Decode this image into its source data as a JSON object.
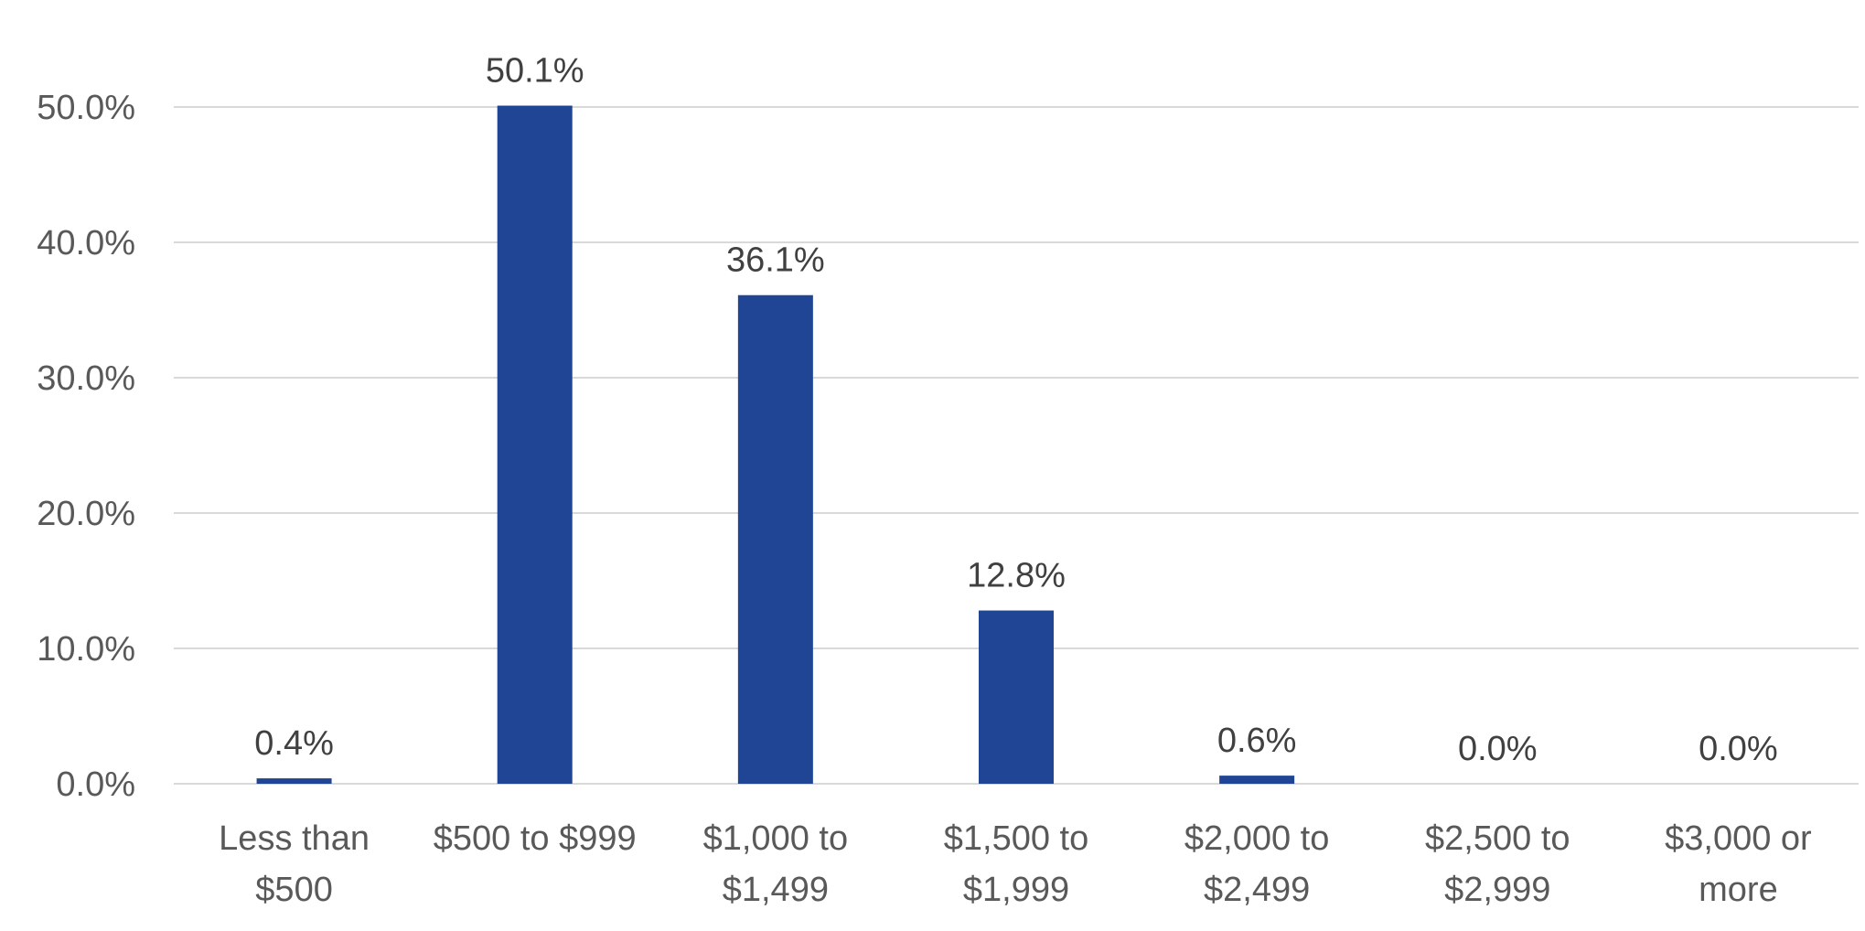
{
  "chart_data": {
    "type": "bar",
    "title": "",
    "xlabel": "",
    "ylabel": "",
    "categories": [
      [
        "Less than",
        "$500"
      ],
      [
        "$500 to $999"
      ],
      [
        "$1,000 to",
        "$1,499"
      ],
      [
        "$1,500 to",
        "$1,999"
      ],
      [
        "$2,000 to",
        "$2,499"
      ],
      [
        "$2,500 to",
        "$2,999"
      ],
      [
        "$3,000 or",
        "more"
      ]
    ],
    "values": [
      0.4,
      50.1,
      36.1,
      12.8,
      0.6,
      0.0,
      0.0
    ],
    "data_labels": [
      "0.4%",
      "50.1%",
      "36.1%",
      "12.8%",
      "0.6%",
      "0.0%",
      "0.0%"
    ],
    "y_ticks": [
      0,
      10,
      20,
      30,
      40,
      50
    ],
    "y_tick_labels": [
      "0.0%",
      "10.0%",
      "20.0%",
      "30.0%",
      "40.0%",
      "50.0%"
    ],
    "ylim": [
      0,
      50
    ],
    "grid": true,
    "legend": "none",
    "colors": {
      "bar": "#1f4594",
      "grid": "#d9d9d9",
      "axis": "#d9d9d9"
    }
  }
}
